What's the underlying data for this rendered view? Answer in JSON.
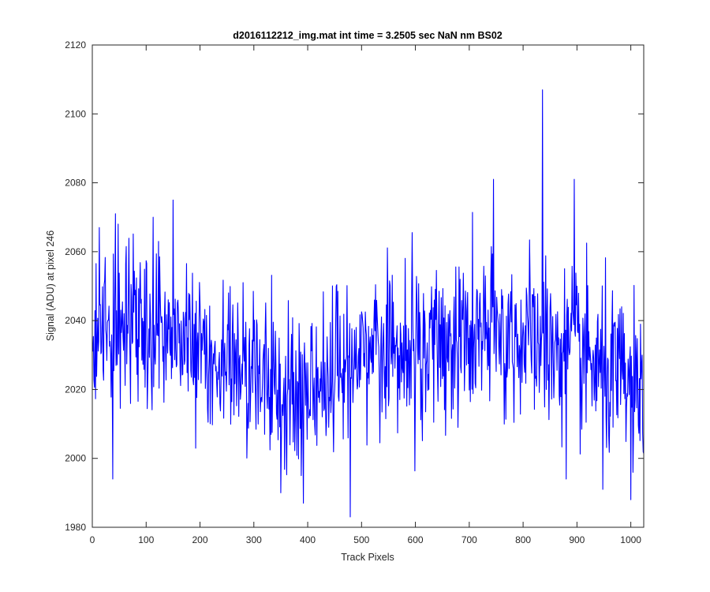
{
  "chart_data": {
    "type": "line",
    "title": "d2016112212_img.mat int time = 3.2505 sec  NaN nm BS02",
    "xlabel": "Track Pixels",
    "ylabel": "Signal (ADU) at pixel 246",
    "xlim": [
      0,
      1024
    ],
    "ylim": [
      1980,
      2120
    ],
    "xticks": [
      0,
      100,
      200,
      300,
      400,
      500,
      600,
      700,
      800,
      900,
      1000
    ],
    "yticks": [
      1980,
      2000,
      2020,
      2040,
      2060,
      2080,
      2100,
      2120
    ],
    "grid": false,
    "series": [
      {
        "name": "Signal",
        "color": "#0000ff",
        "x_start": 1,
        "x_step": 1,
        "count": 1024,
        "noise_std": 12,
        "seed": 246,
        "baseline_knots": [
          [
            0,
            2034
          ],
          [
            100,
            2040
          ],
          [
            200,
            2030
          ],
          [
            300,
            2025
          ],
          [
            350,
            2020
          ],
          [
            400,
            2018
          ],
          [
            450,
            2025
          ],
          [
            500,
            2032
          ],
          [
            600,
            2030
          ],
          [
            700,
            2035
          ],
          [
            800,
            2035
          ],
          [
            900,
            2030
          ],
          [
            1000,
            2020
          ],
          [
            1024,
            2015
          ]
        ],
        "notable_points": [
          [
            13,
            2067
          ],
          [
            43,
            2071
          ],
          [
            48,
            2068
          ],
          [
            113,
            2070
          ],
          [
            150,
            2075
          ],
          [
            479,
            1983
          ],
          [
            745,
            2081
          ],
          [
            836,
            2107
          ],
          [
            895,
            2081
          ],
          [
            38,
            1994
          ],
          [
            392,
            1987
          ],
          [
            350,
            1990
          ],
          [
            948,
            1991
          ],
          [
            1000,
            1988
          ],
          [
            880,
            1994
          ]
        ]
      }
    ]
  }
}
